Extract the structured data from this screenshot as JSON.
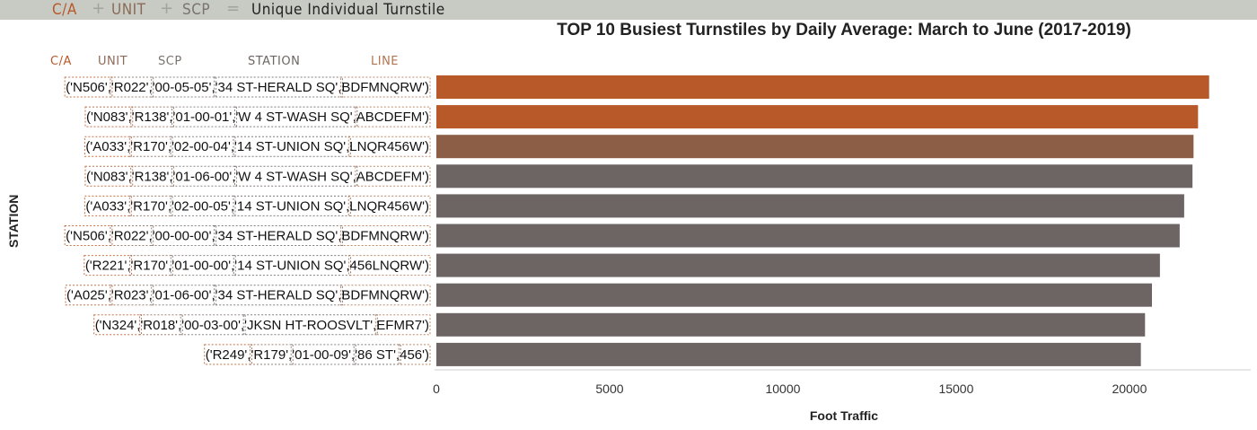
{
  "legend": {
    "ca": "C/A",
    "plus1": "+",
    "unit": "UNIT",
    "plus2": "+",
    "scp": "SCP",
    "equals": "=",
    "result": "Unique Individual Turnstile"
  },
  "columns": {
    "ca": "C/A",
    "unit": "UNIT",
    "scp": "SCP",
    "station": "STATION",
    "line": "LINE"
  },
  "colors": {
    "top1": "#b8592a",
    "top2": "#b8592a",
    "top3": "#8b5e45",
    "rest": "#6c6563",
    "ca": "#b8592a",
    "unit": "#8b6b58",
    "scp": "#7a7370",
    "station": "#6c6563",
    "line": "#b07550",
    "legendGrey": "#a0a39e",
    "legendText": "#222222"
  },
  "chart_data": {
    "type": "bar",
    "orientation": "horizontal",
    "title": "TOP 10 Busiest Turnstiles by Daily Average: March to June (2017-2019)",
    "xlabel": "Foot Traffic",
    "ylabel": "STATION",
    "xlim": [
      0,
      23500
    ],
    "xticks": [
      0,
      5000,
      10000,
      15000,
      20000
    ],
    "grid": false,
    "categories": [
      {
        "ca": "('N506',",
        "unit": "'R022',",
        "scp": "'00-05-05',",
        "station": "'34 ST-HERALD SQ',",
        "line": "BDFMNQRW')"
      },
      {
        "ca": "('N083',",
        "unit": "'R138',",
        "scp": "'01-00-01',",
        "station": "'W 4 ST-WASH SQ',",
        "line": "ABCDEFM')"
      },
      {
        "ca": "('A033',",
        "unit": "'R170',",
        "scp": "'02-00-04',",
        "station": "'14 ST-UNION SQ',",
        "line": "LNQR456W')"
      },
      {
        "ca": "('N083',",
        "unit": "'R138',",
        "scp": "'01-06-00',",
        "station": "'W 4 ST-WASH SQ',",
        "line": "ABCDEFM')"
      },
      {
        "ca": "('A033',",
        "unit": "'R170',",
        "scp": "'02-00-05',",
        "station": "'14 ST-UNION SQ',",
        "line": "LNQR456W')"
      },
      {
        "ca": "('N506',",
        "unit": "'R022',",
        "scp": "'00-00-00',",
        "station": "'34 ST-HERALD SQ',",
        "line": "BDFMNQRW')"
      },
      {
        "ca": "('R221',",
        "unit": "'R170',",
        "scp": "'01-00-00',",
        "station": "'14 ST-UNION SQ',",
        "line": "456LNQRW')"
      },
      {
        "ca": "('A025',",
        "unit": "'R023',",
        "scp": "'01-06-00',",
        "station": "'34 ST-HERALD SQ',",
        "line": "BDFMNQRW')"
      },
      {
        "ca": "('N324',",
        "unit": "'R018',",
        "scp": "'00-03-00',",
        "station": "'JKSN HT-ROOSVLT',",
        "line": "EFMR7')"
      },
      {
        "ca": "('R249',",
        "unit": "'R179',",
        "scp": "'01-00-09',",
        "station": "'86 ST',",
        "line": "456')"
      }
    ],
    "values": [
      22300,
      21980,
      21850,
      21820,
      21580,
      21450,
      20880,
      20650,
      20450,
      20330
    ]
  }
}
